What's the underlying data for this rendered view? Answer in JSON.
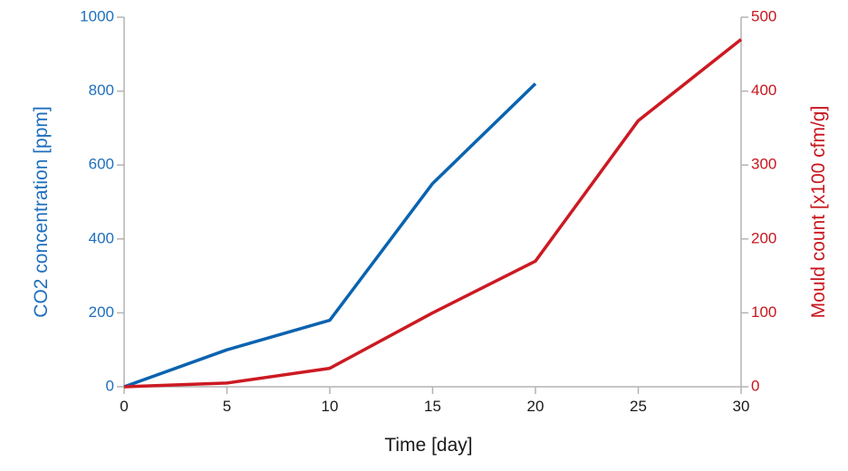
{
  "chart_data": {
    "type": "line",
    "title": "",
    "xlabel": "Time [day]",
    "ylabel_left": "CO2 concentration [ppm]",
    "ylabel_right": "Mould count [x100 cfm/g]",
    "xlim": [
      0,
      30
    ],
    "ylim_left": [
      0,
      1000
    ],
    "ylim_right": [
      0,
      500
    ],
    "x_ticks": [
      "0",
      "5",
      "10",
      "15",
      "20",
      "25",
      "30"
    ],
    "y_left_ticks": [
      "0",
      "200",
      "400",
      "600",
      "800",
      "1000"
    ],
    "y_right_ticks": [
      "0",
      "100",
      "200",
      "300",
      "400",
      "500"
    ],
    "grid": false,
    "legend": "none",
    "series": [
      {
        "axis": "left",
        "color": "#0a63b0",
        "x": [
          0,
          5,
          10,
          15,
          20
        ],
        "y": [
          0,
          100,
          180,
          550,
          820
        ]
      },
      {
        "axis": "right",
        "color": "#cc1a22",
        "x": [
          0,
          5,
          10,
          15,
          20,
          25,
          30
        ],
        "y": [
          0,
          5,
          25,
          100,
          170,
          360,
          470
        ]
      }
    ],
    "colors": {
      "left_axis": "#1f6fbd",
      "right_axis": "#c8161d",
      "axis_line": "#b3b3b3",
      "x_text": "#1a1a1a"
    }
  }
}
